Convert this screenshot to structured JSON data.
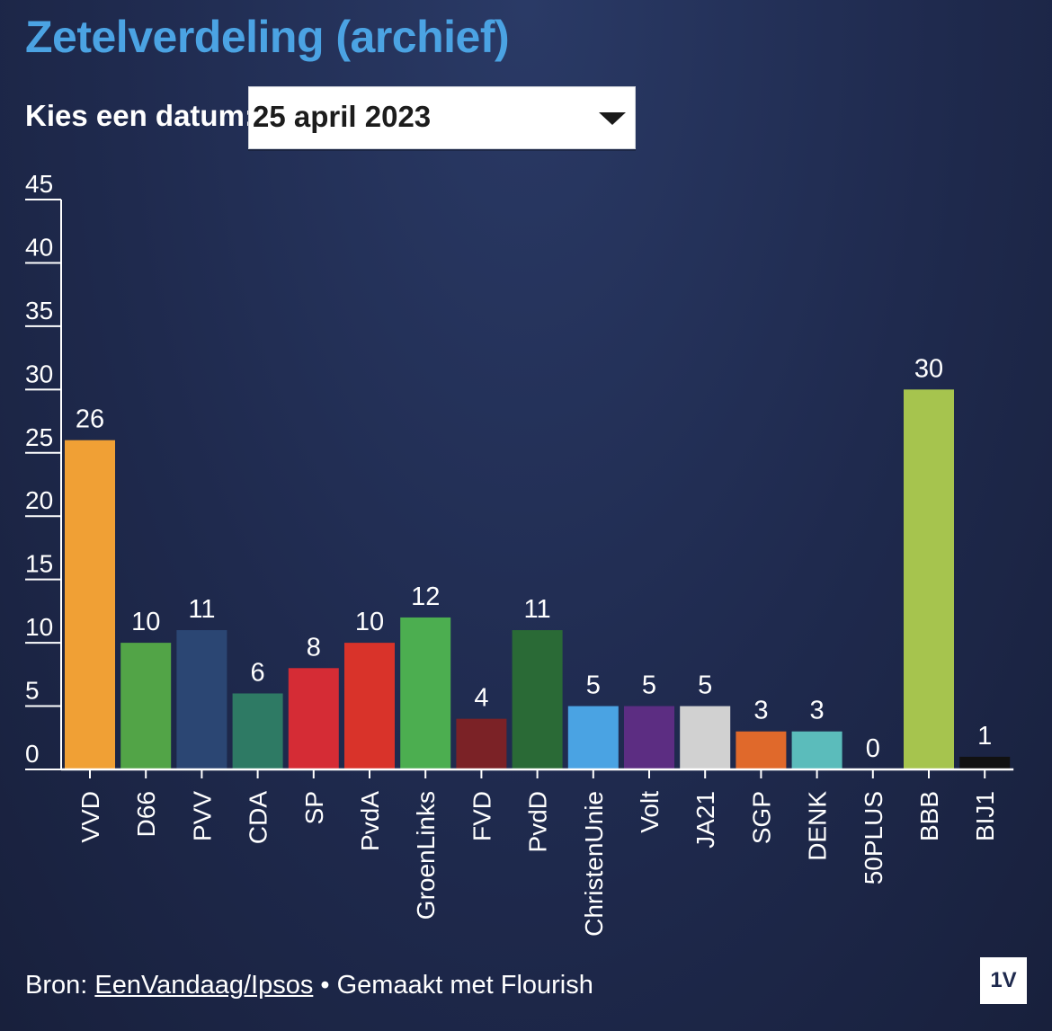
{
  "header": {
    "title": "Zetelverdeling (archief)",
    "date_label": "Kies een datum:",
    "date_value": "25 april 2023"
  },
  "chart_data": {
    "type": "bar",
    "categories": [
      "VVD",
      "D66",
      "PVV",
      "CDA",
      "SP",
      "PvdA",
      "GroenLinks",
      "FVD",
      "PvdD",
      "ChristenUnie",
      "Volt",
      "JA21",
      "SGP",
      "DENK",
      "50PLUS",
      "BBB",
      "BIJ1"
    ],
    "values": [
      26,
      10,
      11,
      6,
      8,
      10,
      12,
      4,
      11,
      5,
      5,
      5,
      3,
      3,
      0,
      30,
      1
    ],
    "colors": [
      "#f0a035",
      "#52a447",
      "#2b4673",
      "#2e7a64",
      "#d52c35",
      "#d9332a",
      "#4cae50",
      "#7b2226",
      "#2a6a36",
      "#4aa3e3",
      "#5c2d82",
      "#d1d1d1",
      "#e0692b",
      "#5bbcbb",
      "#aaaaaa",
      "#a6c44e",
      "#111111"
    ],
    "ylim": [
      0,
      45
    ],
    "yticks": [
      0,
      5,
      10,
      15,
      20,
      25,
      30,
      35,
      40,
      45
    ],
    "grid": false,
    "legend": "none"
  },
  "footer": {
    "source_prefix": "Bron:",
    "source_link": "EenVandaag/Ipsos",
    "separator": "•",
    "made_with": "Gemaakt met Flourish",
    "logo_text": "1V"
  }
}
